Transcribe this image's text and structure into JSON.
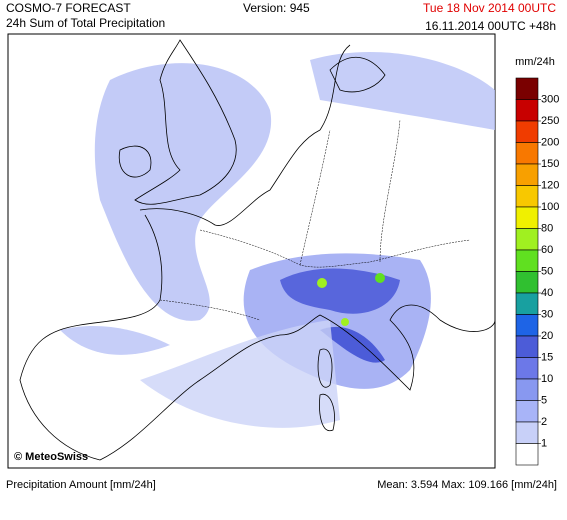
{
  "header": {
    "title": "COSMO-7 FORECAST",
    "subtitle": "24h Sum of Total Precipitation",
    "version": "Version: 945",
    "valid": "Tue 18 Nov 2014 00UTC",
    "run": "16.11.2014 00UTC +48h"
  },
  "map": {
    "credit": "© MeteoSwiss"
  },
  "legend": {
    "unit": "mm/24h",
    "levels": [
      300,
      250,
      200,
      150,
      120,
      100,
      80,
      60,
      50,
      40,
      30,
      20,
      15,
      10,
      5,
      2,
      1
    ],
    "colors": [
      "#7a0000",
      "#c80000",
      "#f03c00",
      "#f87800",
      "#f8a000",
      "#f8c800",
      "#f0f000",
      "#a0f020",
      "#60e020",
      "#30c030",
      "#18a0a0",
      "#1e64e6",
      "#4c5cd8",
      "#6c78e8",
      "#8898f0",
      "#a8b4f8",
      "#c8d0f8",
      "#ffffff"
    ]
  },
  "footer": {
    "label": "Precipitation Amount [mm/24h]",
    "stats": "Mean:  3.594 Max: 109.166 [mm/24h]"
  }
}
